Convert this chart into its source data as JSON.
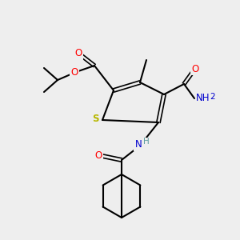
{
  "bg": "#eeeeee",
  "figsize": [
    3.0,
    3.0
  ],
  "dpi": 100,
  "colors": {
    "C": "#000000",
    "O": "#ff0000",
    "N": "#0000cd",
    "S": "#b8b800",
    "NH": "#5f9ea0",
    "bond": "#000000"
  },
  "lw": 1.5,
  "lw_double": 1.2,
  "font_size": 8.5,
  "font_size_small": 7.5
}
